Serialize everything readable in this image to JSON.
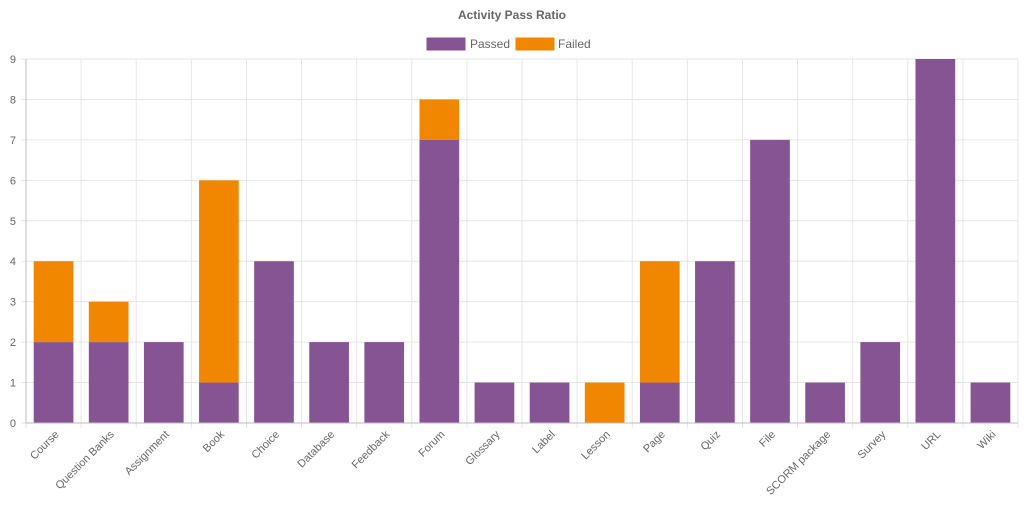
{
  "chart_data": {
    "type": "bar",
    "stacked": true,
    "title": "Activity Pass Ratio",
    "xlabel": "",
    "ylabel": "",
    "ylim": [
      0,
      9
    ],
    "yticks": [
      0,
      1,
      2,
      3,
      4,
      5,
      6,
      7,
      8,
      9
    ],
    "grid": true,
    "legend_position": "top-center",
    "categories": [
      "Course",
      "Question Banks",
      "Assignment",
      "Book",
      "Choice",
      "Database",
      "Feedback",
      "Forum",
      "Glossary",
      "Label",
      "Lesson",
      "Page",
      "Quiz",
      "File",
      "SCORM package",
      "Survey",
      "URL",
      "Wiki"
    ],
    "series": [
      {
        "name": "Passed",
        "color": "#865393",
        "values": [
          2,
          2,
          2,
          1,
          4,
          2,
          2,
          7,
          1,
          1,
          0,
          1,
          4,
          7,
          1,
          2,
          9,
          1
        ]
      },
      {
        "name": "Failed",
        "color": "#f18700",
        "values": [
          2,
          1,
          0,
          5,
          0,
          0,
          0,
          1,
          0,
          0,
          1,
          3,
          0,
          0,
          0,
          0,
          0,
          0
        ]
      }
    ]
  }
}
